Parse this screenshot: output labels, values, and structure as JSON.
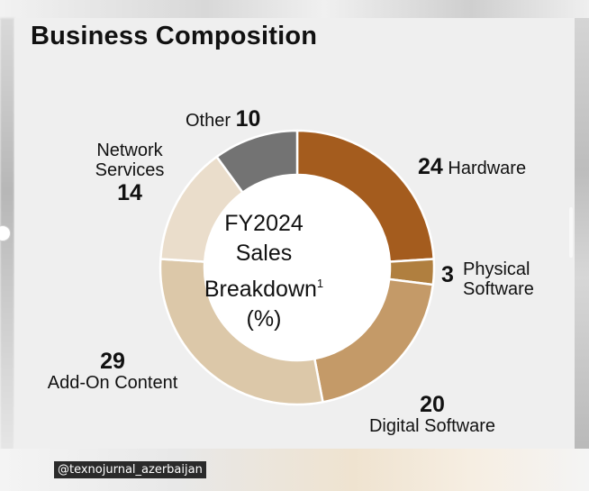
{
  "title": "Business Composition",
  "watermark": "@texnojurnal_azerbaijan",
  "center_label": {
    "line1": "FY2024",
    "line2": "Sales",
    "line3": "Breakdown",
    "footnote": "1",
    "unit": " (%)"
  },
  "chart_data": {
    "type": "pie",
    "style": "donut",
    "title": "Business Composition",
    "categories": [
      "Hardware",
      "Physical Software",
      "Digital Software",
      "Add-On Content",
      "Network Services",
      "Other"
    ],
    "values": [
      24,
      3,
      20,
      29,
      14,
      10
    ],
    "colors": [
      "#a45c1e",
      "#b07f3f",
      "#c49a68",
      "#dcc8a9",
      "#eaddcb",
      "#737373"
    ],
    "labels": [
      {
        "number": "24",
        "line1": "Hardware",
        "line2": ""
      },
      {
        "number": "3",
        "line1": "Physical",
        "line2": "Software"
      },
      {
        "number": "20",
        "line1": "Digital Software",
        "line2": ""
      },
      {
        "number": "29",
        "line1": "Add-On Content",
        "line2": ""
      },
      {
        "number": "14",
        "line1": "Network",
        "line2": "Services"
      },
      {
        "number": "10",
        "line1": "Other",
        "line2": ""
      }
    ]
  }
}
